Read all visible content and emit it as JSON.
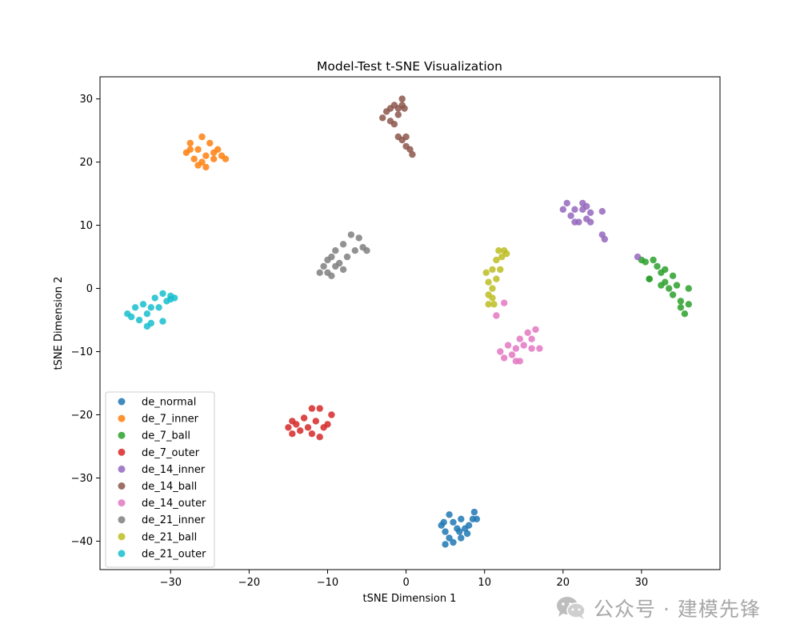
{
  "chart_data": {
    "type": "scatter",
    "title": "Model-Test t-SNE Visualization",
    "xlabel": "tSNE Dimension 1",
    "ylabel": "tSNE Dimension 2",
    "xlim": [
      -39,
      40
    ],
    "ylim": [
      -44.5,
      33.5
    ],
    "xticks": [
      -30,
      -20,
      -10,
      0,
      10,
      20,
      30
    ],
    "xtick_labels": [
      "−30",
      "−20",
      "−10",
      "0",
      "10",
      "20",
      "30"
    ],
    "yticks": [
      -40,
      -30,
      -20,
      -10,
      0,
      10,
      20,
      30
    ],
    "ytick_labels": [
      "−40",
      "−30",
      "−20",
      "−10",
      "0",
      "10",
      "20",
      "30"
    ],
    "grid": false,
    "legend_position": "lower-left",
    "series": [
      {
        "name": "de_normal",
        "color": "#1f77b4",
        "points": [
          [
            4.5,
            -37.5
          ],
          [
            5,
            -38.5
          ],
          [
            5.5,
            -39.5
          ],
          [
            6,
            -37
          ],
          [
            6.5,
            -38
          ],
          [
            7,
            -36.5
          ],
          [
            7.5,
            -38
          ],
          [
            8,
            -37.5
          ],
          [
            8.5,
            -36.5
          ],
          [
            9,
            -36.5
          ],
          [
            5,
            -40.5
          ],
          [
            6,
            -40.2
          ],
          [
            7,
            -39.5
          ],
          [
            5.5,
            -35.8
          ],
          [
            8.7,
            -35.4
          ],
          [
            6.8,
            -38.5
          ],
          [
            7.8,
            -38.8
          ],
          [
            4.8,
            -37
          ]
        ]
      },
      {
        "name": "de_7_inner",
        "color": "#ff7f0e",
        "points": [
          [
            -28,
            21.5
          ],
          [
            -27.5,
            23
          ],
          [
            -27,
            20.5
          ],
          [
            -26.5,
            22
          ],
          [
            -26,
            24
          ],
          [
            -25.5,
            21
          ],
          [
            -25,
            23
          ],
          [
            -24.5,
            20.5
          ],
          [
            -24,
            22
          ],
          [
            -23.5,
            21
          ],
          [
            -23,
            20.5
          ],
          [
            -26.5,
            19.5
          ],
          [
            -25.5,
            19.2
          ],
          [
            -27.5,
            22
          ],
          [
            -24.5,
            21.5
          ],
          [
            -26,
            20
          ]
        ]
      },
      {
        "name": "de_7_ball",
        "color": "#2ca02c",
        "points": [
          [
            30,
            4.5
          ],
          [
            30.5,
            4.2
          ],
          [
            31,
            1.5
          ],
          [
            31.5,
            4.5
          ],
          [
            32,
            3.5
          ],
          [
            32.5,
            2.5
          ],
          [
            33,
            1
          ],
          [
            33,
            3
          ],
          [
            33.5,
            0
          ],
          [
            34,
            2
          ],
          [
            34,
            -1
          ],
          [
            34.5,
            0.5
          ],
          [
            35,
            -2
          ],
          [
            35,
            -3
          ],
          [
            35.5,
            -4
          ],
          [
            36,
            -2.5
          ],
          [
            36,
            0
          ],
          [
            32.5,
            0.5
          ],
          [
            31,
            1.5
          ]
        ]
      },
      {
        "name": "de_7_outer",
        "color": "#d62728",
        "points": [
          [
            -15,
            -22
          ],
          [
            -14.5,
            -23
          ],
          [
            -14,
            -21.5
          ],
          [
            -13.5,
            -22.5
          ],
          [
            -13,
            -20.5
          ],
          [
            -12.5,
            -22
          ],
          [
            -12,
            -19
          ],
          [
            -11.5,
            -21
          ],
          [
            -11,
            -19
          ],
          [
            -11,
            -23.5
          ],
          [
            -10.5,
            -22
          ],
          [
            -10,
            -21.5
          ],
          [
            -9.5,
            -20
          ],
          [
            -12,
            -23
          ],
          [
            -14.5,
            -21
          ]
        ]
      },
      {
        "name": "de_14_inner",
        "color": "#9467bd",
        "points": [
          [
            20,
            12.5
          ],
          [
            20.5,
            13.5
          ],
          [
            21,
            11.5
          ],
          [
            21.5,
            12.5
          ],
          [
            22,
            10.5
          ],
          [
            22.5,
            13.5
          ],
          [
            23,
            11
          ],
          [
            23,
            13
          ],
          [
            23.5,
            10.5
          ],
          [
            23.5,
            12
          ],
          [
            21.5,
            10.5
          ],
          [
            22.5,
            12.5
          ],
          [
            25,
            12.2
          ],
          [
            25,
            8.5
          ],
          [
            25.3,
            7.8
          ],
          [
            29.5,
            5
          ]
        ]
      },
      {
        "name": "de_14_ball",
        "color": "#8c564b",
        "points": [
          [
            -3,
            27
          ],
          [
            -2.5,
            28
          ],
          [
            -2,
            28.5
          ],
          [
            -2,
            26.5
          ],
          [
            -1.5,
            29
          ],
          [
            -1,
            27.5
          ],
          [
            -1,
            28.5
          ],
          [
            -0.5,
            30
          ],
          [
            -0.5,
            29
          ],
          [
            -0.2,
            28.5
          ],
          [
            -1.5,
            26
          ],
          [
            -1,
            24
          ],
          [
            -0.5,
            23.5
          ],
          [
            0,
            22.5
          ],
          [
            0,
            24
          ],
          [
            0.5,
            22
          ],
          [
            0.8,
            21.2
          ]
        ]
      },
      {
        "name": "de_14_outer",
        "color": "#e377c2",
        "points": [
          [
            12,
            -10
          ],
          [
            12.5,
            -11
          ],
          [
            13,
            -9
          ],
          [
            13.5,
            -10.5
          ],
          [
            14,
            -11.5
          ],
          [
            14,
            -9.5
          ],
          [
            14.5,
            -8
          ],
          [
            15,
            -9
          ],
          [
            15.5,
            -7
          ],
          [
            16,
            -8
          ],
          [
            16.5,
            -6.5
          ],
          [
            17,
            -9.5
          ],
          [
            16,
            -9.5
          ],
          [
            14.5,
            -11.5
          ],
          [
            12.5,
            -2.3
          ],
          [
            11.5,
            -4.3
          ]
        ]
      },
      {
        "name": "de_21_inner",
        "color": "#7f7f7f",
        "points": [
          [
            -11,
            2.5
          ],
          [
            -10.5,
            3.5
          ],
          [
            -10,
            4.5
          ],
          [
            -10,
            2.5
          ],
          [
            -9.5,
            5
          ],
          [
            -9,
            3.5
          ],
          [
            -9,
            6
          ],
          [
            -8.5,
            4
          ],
          [
            -8,
            7
          ],
          [
            -7.5,
            5
          ],
          [
            -7,
            8.5
          ],
          [
            -6.5,
            6
          ],
          [
            -6,
            8
          ],
          [
            -5.5,
            6.5
          ],
          [
            -5,
            6
          ],
          [
            -9.5,
            2
          ],
          [
            -8,
            3
          ]
        ]
      },
      {
        "name": "de_21_ball",
        "color": "#bcbd22",
        "points": [
          [
            10.2,
            2.5
          ],
          [
            10.5,
            1
          ],
          [
            10.5,
            -1
          ],
          [
            10.5,
            -2.5
          ],
          [
            11,
            3
          ],
          [
            11,
            0
          ],
          [
            11,
            -1.5
          ],
          [
            11.2,
            -2.5
          ],
          [
            11.5,
            4.5
          ],
          [
            11.5,
            1.5
          ],
          [
            11.8,
            6
          ],
          [
            12.2,
            5
          ],
          [
            12.5,
            6
          ],
          [
            12.8,
            5.5
          ],
          [
            12,
            3
          ]
        ]
      },
      {
        "name": "de_21_outer",
        "color": "#17becf",
        "points": [
          [
            -35.5,
            -4
          ],
          [
            -35,
            -4.5
          ],
          [
            -34.5,
            -3
          ],
          [
            -34,
            -5
          ],
          [
            -33.5,
            -2.5
          ],
          [
            -33,
            -4
          ],
          [
            -33,
            -6
          ],
          [
            -32.5,
            -3
          ],
          [
            -32,
            -1.5
          ],
          [
            -31.5,
            -3
          ],
          [
            -31,
            -0.8
          ],
          [
            -30.5,
            -2
          ],
          [
            -30,
            -1.2
          ],
          [
            -29.5,
            -1.5
          ],
          [
            -32.5,
            -5.5
          ],
          [
            -31,
            -5.2
          ],
          [
            -30,
            -1.7
          ]
        ]
      }
    ]
  },
  "watermark": {
    "text": "公众号 · 建模先锋",
    "icon": "wechat-icon"
  }
}
